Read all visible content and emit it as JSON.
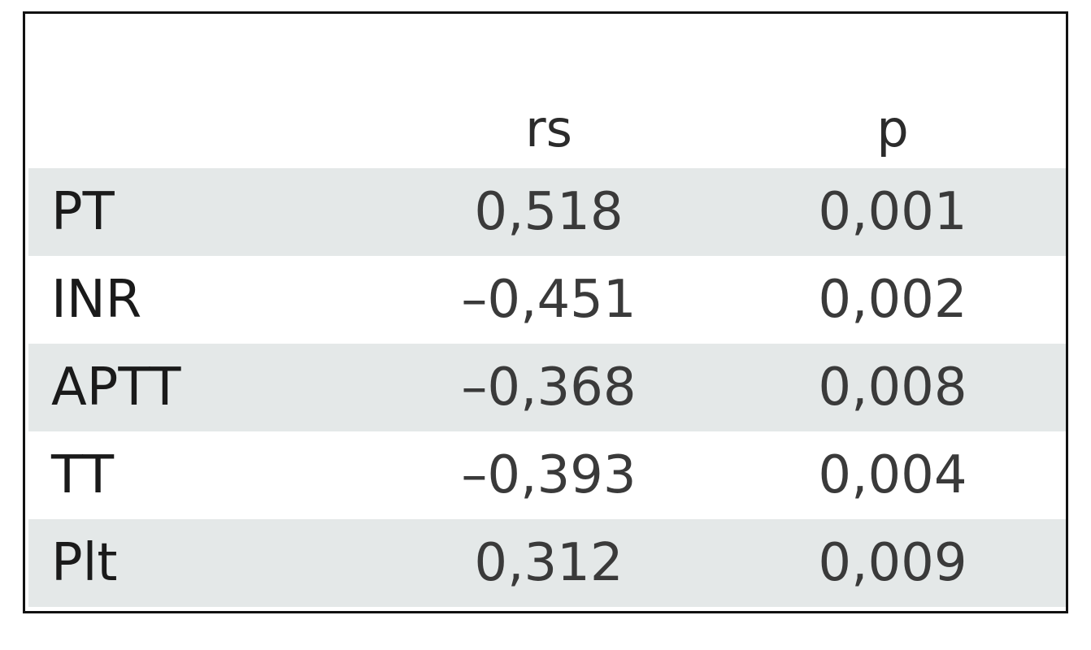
{
  "table": {
    "columns": [
      "",
      "rs",
      "p"
    ],
    "rows": [
      {
        "label": "PT",
        "rs": "0,518",
        "p": "0,001"
      },
      {
        "label": "INR",
        "rs": "–0,451",
        "p": "0,002"
      },
      {
        "label": "APTT",
        "rs": "–0,368",
        "p": "0,008"
      },
      {
        "label": "TT",
        "rs": "–0,393",
        "p": "0,004"
      },
      {
        "label": "Plt",
        "rs": "0,312",
        "p": "0,009"
      }
    ],
    "colors": {
      "row_shade": "#e4e8e8",
      "border": "#111111",
      "text": "#3a3a3a"
    }
  }
}
